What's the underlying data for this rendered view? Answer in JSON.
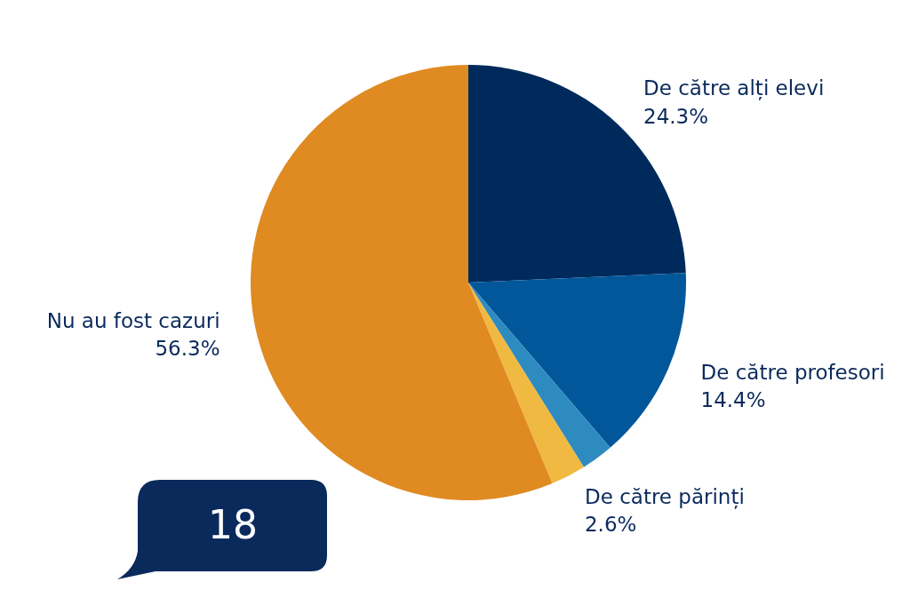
{
  "chart_data": {
    "type": "pie",
    "categories": [
      "De către alți elevi",
      "De către profesori",
      null,
      "De către părinți",
      "Nu au fost cazuri"
    ],
    "values": [
      24.3,
      14.4,
      2.4,
      2.6,
      56.3
    ],
    "value_labels": [
      "24.3%",
      "14.4%",
      null,
      "2.6%",
      "56.3%"
    ],
    "colors": [
      "#002a5c",
      "#02579a",
      "#2e8bc0",
      "#f0b942",
      "#e08a22"
    ],
    "annotations": [
      "18"
    ]
  }
}
